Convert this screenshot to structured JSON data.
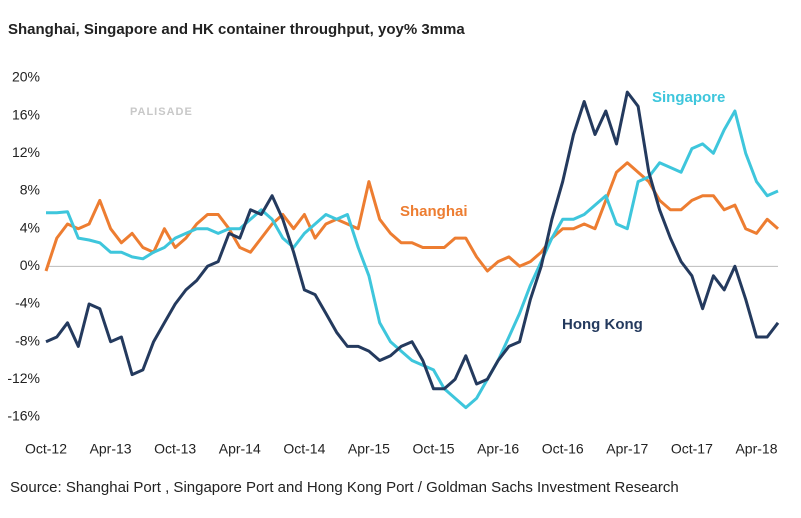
{
  "chart_data": {
    "type": "line",
    "title": "Shanghai, Singapore and HK container throughput, yoy% 3mma",
    "source": "Source: Shanghai Port , Singapore Port and Hong Kong Port / Goldman Sachs Investment Research",
    "watermark": "PALISADE",
    "categories": [
      "Oct-12",
      null,
      null,
      null,
      null,
      null,
      "Apr-13",
      null,
      null,
      null,
      null,
      null,
      "Oct-13",
      null,
      null,
      null,
      null,
      null,
      "Apr-14",
      null,
      null,
      null,
      null,
      null,
      "Oct-14",
      null,
      null,
      null,
      null,
      null,
      "Apr-15",
      null,
      null,
      null,
      null,
      null,
      "Oct-15",
      null,
      null,
      null,
      null,
      null,
      "Apr-16",
      null,
      null,
      null,
      null,
      null,
      "Oct-16",
      null,
      null,
      null,
      null,
      null,
      "Apr-17",
      null,
      null,
      null,
      null,
      null,
      "Oct-17",
      null,
      null,
      null,
      null,
      null,
      "Apr-18",
      null,
      null
    ],
    "ylim": [
      -16,
      20
    ],
    "yticks": [
      {
        "value": 20,
        "label": "20%"
      },
      {
        "value": 16,
        "label": "16%"
      },
      {
        "value": 12,
        "label": "12%"
      },
      {
        "value": 8,
        "label": "8%"
      },
      {
        "value": 4,
        "label": "4%"
      },
      {
        "value": 0,
        "label": "0%"
      },
      {
        "value": -4,
        "label": "-4%"
      },
      {
        "value": -8,
        "label": "-8%"
      },
      {
        "value": -12,
        "label": "-12%"
      },
      {
        "value": -16,
        "label": "-16%"
      }
    ],
    "grid": false,
    "series": [
      {
        "name": "Shanghai",
        "color": "#ED7D31",
        "values": [
          -0.5,
          3,
          4.5,
          4,
          4.5,
          7,
          4,
          2.5,
          3.5,
          2,
          1.5,
          4,
          2,
          3,
          4.5,
          5.5,
          5.5,
          4,
          2,
          1.5,
          3,
          4.5,
          5.5,
          4,
          5.5,
          3,
          4.5,
          5,
          4.5,
          4,
          9,
          5,
          3.5,
          2.5,
          2.5,
          2,
          2,
          2,
          3,
          3,
          1,
          -0.5,
          0.5,
          1,
          0,
          0.5,
          1.5,
          3,
          4,
          4,
          4.5,
          4,
          7,
          10,
          11,
          10,
          9,
          7,
          6,
          6,
          7,
          7.5,
          7.5,
          6,
          6.5,
          4,
          3.5,
          5,
          4
        ]
      },
      {
        "name": "Singapore",
        "color": "#3EC6DC",
        "values": [
          5.7,
          5.7,
          5.8,
          3,
          2.8,
          2.5,
          1.5,
          1.5,
          1,
          0.8,
          1.5,
          2,
          3,
          3.5,
          4,
          4,
          3.5,
          4,
          4,
          5,
          6,
          5,
          3,
          2,
          3.5,
          4.5,
          5.5,
          5,
          5.5,
          2,
          -1,
          -6,
          -8,
          -9,
          -10,
          -10.5,
          -11,
          -13,
          -14,
          -15,
          -14,
          -12,
          -10,
          -7.5,
          -5,
          -2,
          0.5,
          3,
          5,
          5,
          5.5,
          6.5,
          7.5,
          4.5,
          4,
          9,
          9.5,
          11,
          10.5,
          10,
          12.5,
          13,
          12,
          14.5,
          16.5,
          12,
          9,
          7.5,
          8
        ]
      },
      {
        "name": "Hong Kong",
        "color": "#243A5E",
        "values": [
          -8,
          -7.5,
          -6,
          -8.5,
          -4,
          -4.5,
          -8,
          -7.5,
          -11.5,
          -11,
          -8,
          -6,
          -4,
          -2.5,
          -1.5,
          0,
          0.5,
          3.5,
          3,
          6,
          5.5,
          7.5,
          5,
          1.5,
          -2.5,
          -3,
          -5,
          -7,
          -8.5,
          -8.5,
          -9,
          -10,
          -9.5,
          -8.5,
          -8,
          -10,
          -13,
          -13,
          -12,
          -9.5,
          -12.5,
          -12,
          -10,
          -8.5,
          -8,
          -3.5,
          0,
          5,
          9,
          14,
          17.5,
          14,
          16.5,
          13,
          18.5,
          17,
          10,
          6,
          3,
          0.5,
          -1,
          -4.5,
          -1,
          -2.5,
          0,
          -3.5,
          -7.5,
          -7.5,
          -6
        ]
      }
    ]
  }
}
